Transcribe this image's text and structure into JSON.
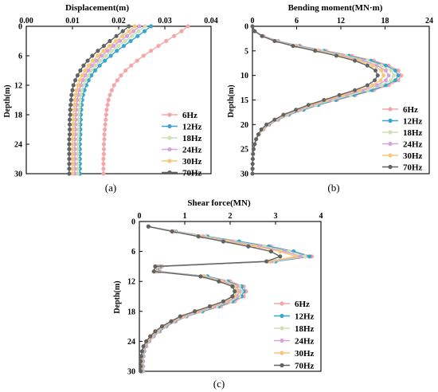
{
  "colors": {
    "6Hz": "#f4a6a8",
    "12Hz": "#3aa6cf",
    "18Hz": "#cfe0b2",
    "24Hz": "#d6a4db",
    "30Hz": "#f7c67a",
    "70Hz": "#5f6366"
  },
  "chart_data": [
    {
      "type": "line",
      "panel_label": "(a)",
      "xlabel": "Displacement(m)",
      "ylabel": "Depth(m)",
      "xlim": [
        0,
        0.04
      ],
      "ylim": [
        0,
        30
      ],
      "xticks": [
        "0.00",
        "0.01",
        "0.02",
        "0.03",
        "0.04"
      ],
      "yticks": [
        "0",
        "6",
        "12",
        "18",
        "24",
        "30"
      ],
      "x_axis_position": "top",
      "y_inverted": true,
      "legend_position": "bottom-right",
      "y": [
        0,
        1,
        2,
        3,
        4,
        5,
        6,
        7,
        8,
        9,
        10,
        11,
        12,
        13,
        14,
        15,
        16,
        17,
        18,
        19,
        20,
        21,
        22,
        23,
        24,
        25,
        26,
        27,
        28,
        29,
        30
      ],
      "series": [
        {
          "name": "6Hz",
          "values": [
            0.035,
            0.0336,
            0.032,
            0.0303,
            0.0286,
            0.027,
            0.0254,
            0.024,
            0.0227,
            0.0215,
            0.0205,
            0.0197,
            0.019,
            0.0185,
            0.0181,
            0.0178,
            0.0176,
            0.0174,
            0.0173,
            0.0172,
            0.0171,
            0.017,
            0.0169,
            0.0169,
            0.0168,
            0.0168,
            0.0168,
            0.0167,
            0.0167,
            0.0167,
            0.0167
          ]
        },
        {
          "name": "12Hz",
          "values": [
            0.027,
            0.0256,
            0.0241,
            0.0226,
            0.0211,
            0.0196,
            0.0183,
            0.017,
            0.0159,
            0.0149,
            0.0141,
            0.0135,
            0.013,
            0.0126,
            0.0123,
            0.0121,
            0.012,
            0.0119,
            0.0118,
            0.0118,
            0.0117,
            0.0117,
            0.0117,
            0.0116,
            0.0116,
            0.0116,
            0.0116,
            0.0116,
            0.0116,
            0.0116,
            0.0116
          ]
        },
        {
          "name": "18Hz",
          "values": [
            0.0257,
            0.0243,
            0.0229,
            0.0214,
            0.0199,
            0.0185,
            0.0172,
            0.016,
            0.015,
            0.0141,
            0.0134,
            0.0128,
            0.0124,
            0.012,
            0.0118,
            0.0116,
            0.0115,
            0.0114,
            0.0113,
            0.0113,
            0.0112,
            0.0112,
            0.0112,
            0.0111,
            0.0111,
            0.0111,
            0.0111,
            0.0111,
            0.0111,
            0.0111,
            0.0111
          ]
        },
        {
          "name": "24Hz",
          "values": [
            0.0245,
            0.0232,
            0.0218,
            0.0203,
            0.0189,
            0.0176,
            0.0163,
            0.0152,
            0.0142,
            0.0134,
            0.0127,
            0.0122,
            0.0118,
            0.0114,
            0.0112,
            0.011,
            0.0109,
            0.0108,
            0.0107,
            0.0107,
            0.0106,
            0.0106,
            0.0106,
            0.0105,
            0.0105,
            0.0105,
            0.0105,
            0.0105,
            0.0105,
            0.0105,
            0.0105
          ]
        },
        {
          "name": "30Hz",
          "values": [
            0.0235,
            0.0222,
            0.0208,
            0.0194,
            0.018,
            0.0167,
            0.0155,
            0.0144,
            0.0135,
            0.0127,
            0.0121,
            0.0116,
            0.0112,
            0.0109,
            0.0107,
            0.0105,
            0.0104,
            0.0103,
            0.0102,
            0.0102,
            0.0101,
            0.0101,
            0.0101,
            0.01,
            0.01,
            0.01,
            0.01,
            0.01,
            0.01,
            0.01,
            0.01
          ]
        },
        {
          "name": "70Hz",
          "values": [
            0.0222,
            0.0209,
            0.0195,
            0.0181,
            0.0168,
            0.0155,
            0.0143,
            0.0133,
            0.0124,
            0.0117,
            0.0111,
            0.0106,
            0.0102,
            0.01,
            0.0098,
            0.0097,
            0.0096,
            0.0095,
            0.0095,
            0.0094,
            0.0094,
            0.0094,
            0.0094,
            0.0093,
            0.0093,
            0.0093,
            0.0093,
            0.0093,
            0.0093,
            0.0093,
            0.0093
          ]
        }
      ]
    },
    {
      "type": "line",
      "panel_label": "(b)",
      "xlabel": "Bending moment(MN·m)",
      "ylabel": "Depth(m)",
      "xlim": [
        0,
        24
      ],
      "ylim": [
        0,
        30
      ],
      "xticks": [
        "0",
        "6",
        "12",
        "18",
        "24"
      ],
      "yticks": [
        "0",
        "5",
        "10",
        "15",
        "20",
        "25",
        "30"
      ],
      "x_axis_position": "top",
      "y_inverted": true,
      "legend_position": "bottom-right",
      "y": [
        0,
        1,
        2,
        3,
        4,
        5,
        6,
        7,
        8,
        9,
        10,
        11,
        12,
        13,
        14,
        15,
        16,
        17,
        18,
        19,
        20,
        21,
        22,
        23,
        24,
        25,
        26,
        27,
        28,
        29,
        30
      ],
      "series": [
        {
          "name": "6Hz",
          "values": [
            0.0,
            0.3,
            1.5,
            3.5,
            6.5,
            10.0,
            13.5,
            16.5,
            18.5,
            19.8,
            20.2,
            19.8,
            18.5,
            16.5,
            14.0,
            11.5,
            9.0,
            7.0,
            5.0,
            3.5,
            2.3,
            1.5,
            0.9,
            0.5,
            0.3,
            0.15,
            0.08,
            0.04,
            0.02,
            0.01,
            0.0
          ]
        },
        {
          "name": "12Hz",
          "values": [
            0.0,
            0.3,
            1.4,
            3.4,
            6.3,
            9.7,
            13.1,
            16.1,
            18.1,
            19.4,
            19.8,
            19.4,
            18.1,
            16.2,
            13.8,
            11.3,
            8.9,
            6.9,
            4.9,
            3.4,
            2.2,
            1.4,
            0.9,
            0.5,
            0.3,
            0.15,
            0.08,
            0.04,
            0.02,
            0.01,
            0.0
          ]
        },
        {
          "name": "18Hz",
          "values": [
            0.0,
            0.3,
            1.4,
            3.3,
            6.1,
            9.4,
            12.7,
            15.6,
            17.5,
            18.8,
            19.2,
            18.8,
            17.5,
            15.6,
            13.3,
            10.9,
            8.6,
            6.6,
            4.7,
            3.3,
            2.1,
            1.4,
            0.9,
            0.5,
            0.3,
            0.15,
            0.08,
            0.04,
            0.02,
            0.01,
            0.0
          ]
        },
        {
          "name": "24Hz",
          "values": [
            0.0,
            0.3,
            1.4,
            3.2,
            5.9,
            9.1,
            12.3,
            15.0,
            16.9,
            18.1,
            18.5,
            18.1,
            16.9,
            15.0,
            12.8,
            10.5,
            8.2,
            6.4,
            4.5,
            3.2,
            2.1,
            1.3,
            0.8,
            0.5,
            0.3,
            0.15,
            0.08,
            0.04,
            0.02,
            0.01,
            0.0
          ]
        },
        {
          "name": "30Hz",
          "values": [
            0.0,
            0.3,
            1.3,
            3.1,
            5.7,
            8.8,
            11.9,
            14.5,
            16.3,
            17.5,
            17.8,
            17.4,
            16.3,
            14.5,
            12.3,
            10.1,
            7.9,
            6.1,
            4.4,
            3.1,
            2.0,
            1.3,
            0.8,
            0.5,
            0.3,
            0.15,
            0.08,
            0.04,
            0.02,
            0.01,
            0.0
          ]
        },
        {
          "name": "70Hz",
          "values": [
            0.0,
            0.3,
            1.3,
            3.0,
            5.5,
            8.5,
            11.4,
            13.9,
            15.6,
            16.7,
            17.0,
            16.6,
            15.6,
            13.9,
            11.8,
            9.7,
            7.6,
            5.9,
            4.2,
            3.0,
            1.9,
            1.2,
            0.8,
            0.5,
            0.3,
            0.15,
            0.08,
            0.04,
            0.02,
            0.01,
            0.0
          ]
        }
      ]
    },
    {
      "type": "line",
      "panel_label": "(c)",
      "xlabel": "Shear force(MN)",
      "ylabel": "Depth(m)",
      "xlim": [
        0,
        4
      ],
      "ylim": [
        0,
        30
      ],
      "xticks": [
        "0",
        "1",
        "2",
        "3",
        "4"
      ],
      "yticks": [
        "0",
        "6",
        "12",
        "18",
        "24",
        "30"
      ],
      "x_axis_position": "top",
      "y_inverted": true,
      "legend_position": "bottom-right",
      "y": [
        1,
        2,
        3,
        4,
        5,
        6,
        7,
        8,
        9,
        10,
        11,
        12,
        13,
        14,
        15,
        16,
        17,
        18,
        19,
        20,
        21,
        22,
        23,
        24,
        25,
        26,
        27,
        28,
        29,
        30
      ],
      "series": [
        {
          "name": "6Hz",
          "values": [
            0.2,
            0.8,
            1.5,
            2.2,
            2.9,
            3.4,
            3.8,
            3.0,
            0.5,
            0.45,
            1.5,
            2.0,
            2.3,
            2.35,
            2.3,
            2.1,
            1.8,
            1.4,
            1.05,
            0.8,
            0.6,
            0.45,
            0.32,
            0.22,
            0.15,
            0.11,
            0.09,
            0.08,
            0.08,
            0.08
          ]
        },
        {
          "name": "12Hz",
          "values": [
            0.2,
            0.8,
            1.5,
            2.2,
            2.85,
            3.4,
            3.75,
            3.0,
            0.45,
            0.4,
            1.5,
            1.95,
            2.25,
            2.3,
            2.25,
            2.05,
            1.75,
            1.38,
            1.02,
            0.78,
            0.58,
            0.43,
            0.3,
            0.2,
            0.13,
            0.1,
            0.08,
            0.07,
            0.07,
            0.07
          ]
        },
        {
          "name": "18Hz",
          "values": [
            0.2,
            0.78,
            1.45,
            2.1,
            2.75,
            3.3,
            3.65,
            2.95,
            0.42,
            0.38,
            1.45,
            1.9,
            2.2,
            2.25,
            2.2,
            2.0,
            1.7,
            1.34,
            1.0,
            0.76,
            0.56,
            0.41,
            0.29,
            0.19,
            0.12,
            0.09,
            0.07,
            0.06,
            0.06,
            0.06
          ]
        },
        {
          "name": "24Hz",
          "values": [
            0.2,
            0.76,
            1.4,
            2.05,
            2.65,
            3.2,
            3.55,
            2.9,
            0.4,
            0.36,
            1.42,
            1.85,
            2.15,
            2.2,
            2.15,
            1.95,
            1.65,
            1.3,
            0.97,
            0.74,
            0.54,
            0.39,
            0.28,
            0.18,
            0.11,
            0.08,
            0.06,
            0.05,
            0.05,
            0.05
          ]
        },
        {
          "name": "30Hz",
          "values": [
            0.2,
            0.74,
            1.35,
            1.95,
            2.55,
            3.1,
            3.45,
            2.85,
            0.38,
            0.34,
            1.4,
            1.8,
            2.1,
            2.15,
            2.1,
            1.9,
            1.6,
            1.26,
            0.94,
            0.72,
            0.52,
            0.37,
            0.26,
            0.17,
            0.1,
            0.07,
            0.05,
            0.04,
            0.04,
            0.04
          ]
        },
        {
          "name": "70Hz",
          "values": [
            0.2,
            0.72,
            1.3,
            1.85,
            2.4,
            2.9,
            3.1,
            2.8,
            0.35,
            0.32,
            1.35,
            1.75,
            2.05,
            2.1,
            2.05,
            1.85,
            1.55,
            1.22,
            0.9,
            0.7,
            0.5,
            0.35,
            0.24,
            0.15,
            0.09,
            0.06,
            0.04,
            0.03,
            0.03,
            0.03
          ]
        }
      ]
    }
  ]
}
